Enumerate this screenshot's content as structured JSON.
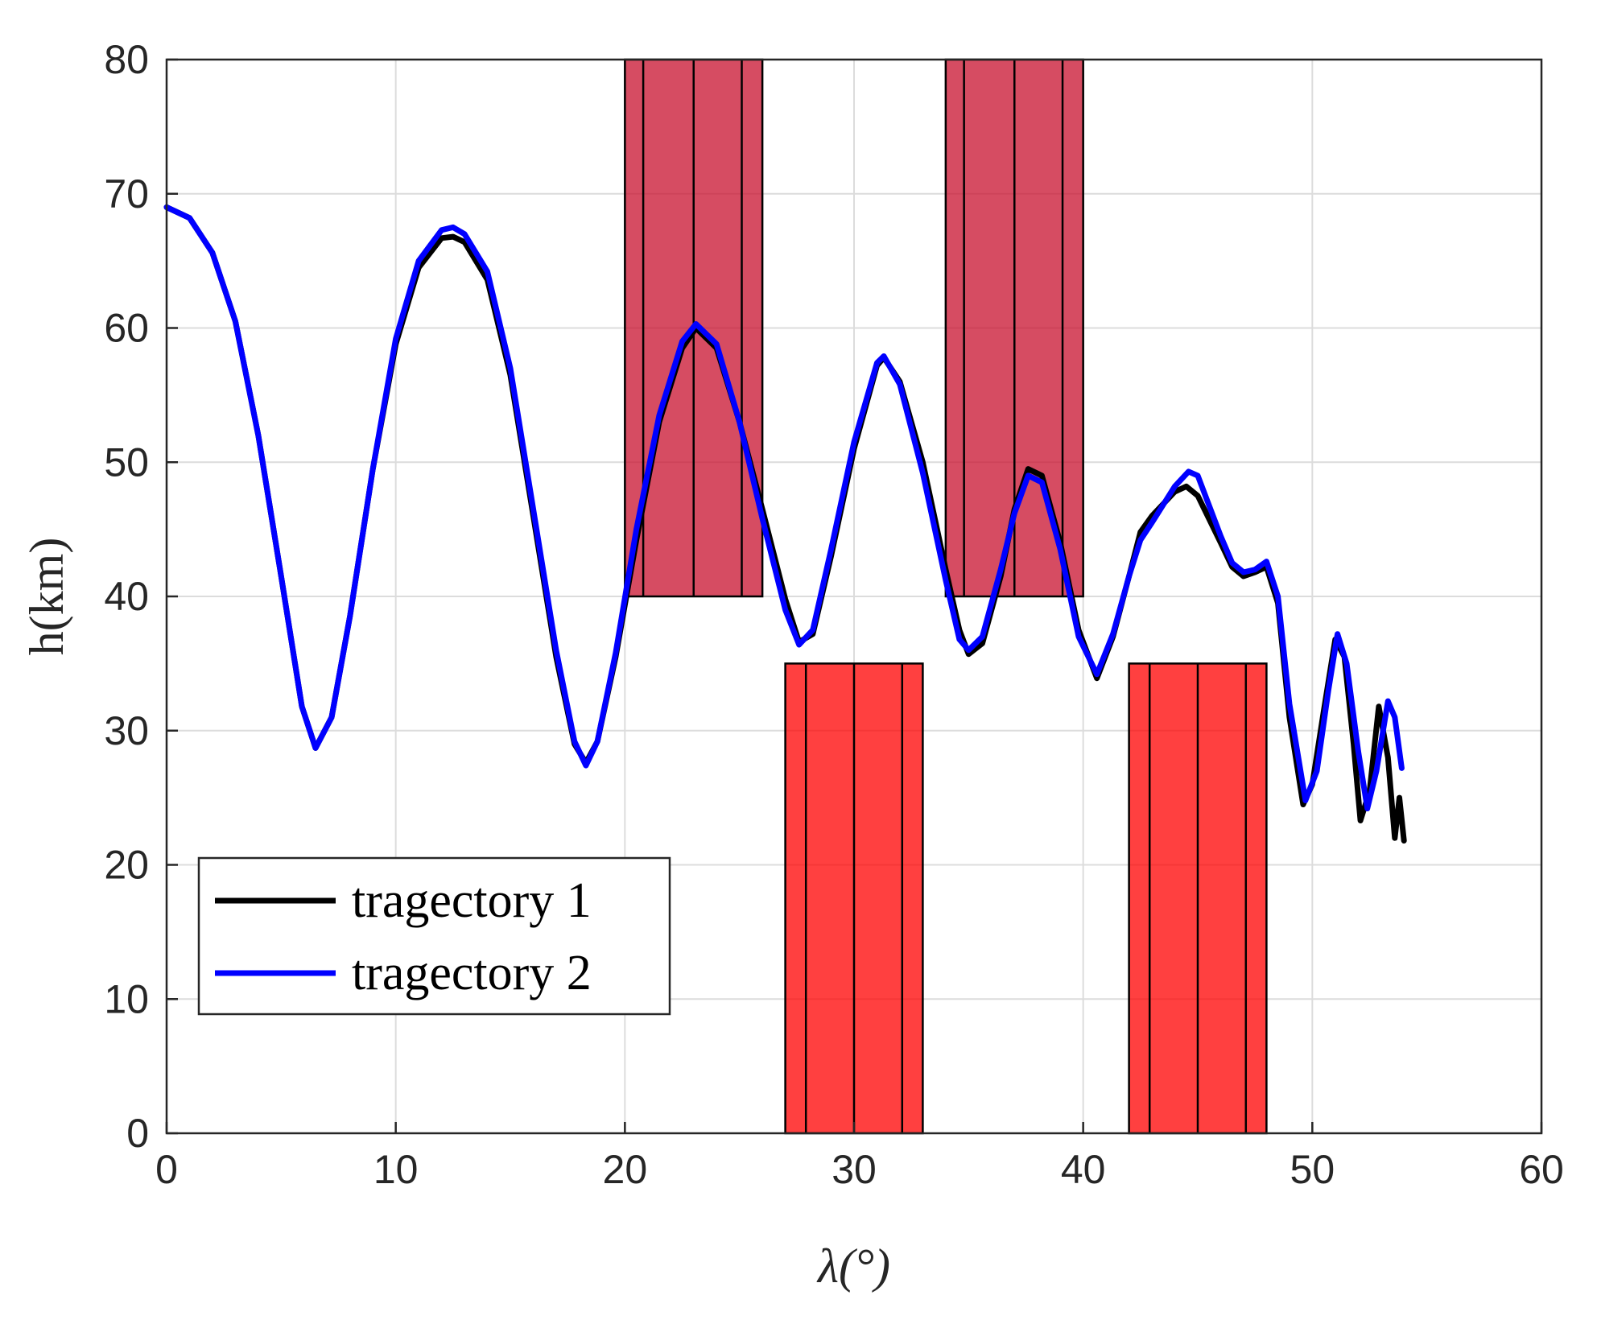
{
  "chart_data": {
    "type": "line",
    "xlabel": "λ(°)",
    "ylabel": "h(km)",
    "xlim": [
      0,
      60
    ],
    "ylim": [
      0,
      80
    ],
    "xticks": [
      0,
      10,
      20,
      30,
      40,
      50,
      60
    ],
    "yticks": [
      0,
      10,
      20,
      30,
      40,
      50,
      60,
      70,
      80
    ],
    "grid": true,
    "legend_position": "bottom-left",
    "series": [
      {
        "name": "tragectory 1",
        "color": "#000000",
        "points": [
          [
            0,
            69
          ],
          [
            1,
            68.2
          ],
          [
            2,
            65.6
          ],
          [
            3,
            60.5
          ],
          [
            4,
            52
          ],
          [
            5,
            41.5
          ],
          [
            5.9,
            31.8
          ],
          [
            6.5,
            28.7
          ],
          [
            7.2,
            31
          ],
          [
            8,
            38.5
          ],
          [
            9,
            49.5
          ],
          [
            10,
            58.8
          ],
          [
            11,
            64.5
          ],
          [
            12,
            66.7
          ],
          [
            12.5,
            66.8
          ],
          [
            13,
            66.4
          ],
          [
            14,
            63.6
          ],
          [
            15,
            56.5
          ],
          [
            16,
            46
          ],
          [
            17,
            35.5
          ],
          [
            17.8,
            29
          ],
          [
            18.3,
            27.6
          ],
          [
            18.8,
            29.2
          ],
          [
            19.6,
            35.5
          ],
          [
            20.5,
            44.2
          ],
          [
            21.5,
            53
          ],
          [
            22.5,
            58.5
          ],
          [
            23.1,
            60
          ],
          [
            24,
            58.5
          ],
          [
            25,
            53
          ],
          [
            26,
            46.5
          ],
          [
            27,
            39.8
          ],
          [
            27.6,
            36.6
          ],
          [
            28.2,
            37.2
          ],
          [
            29,
            43
          ],
          [
            30,
            51
          ],
          [
            31,
            57.2
          ],
          [
            31.3,
            57.8
          ],
          [
            32,
            56
          ],
          [
            33,
            50
          ],
          [
            34,
            42
          ],
          [
            34.6,
            37.5
          ],
          [
            35,
            35.7
          ],
          [
            35.6,
            36.5
          ],
          [
            36.4,
            41.5
          ],
          [
            37,
            46.5
          ],
          [
            37.6,
            49.5
          ],
          [
            38.2,
            49
          ],
          [
            39,
            44
          ],
          [
            39.8,
            37.5
          ],
          [
            40.6,
            33.9
          ],
          [
            41.3,
            37
          ],
          [
            42,
            41.5
          ],
          [
            42.5,
            44.8
          ],
          [
            43,
            46
          ],
          [
            44,
            47.8
          ],
          [
            44.5,
            48.2
          ],
          [
            45,
            47.5
          ],
          [
            46,
            44
          ],
          [
            46.5,
            42.2
          ],
          [
            47,
            41.5
          ],
          [
            47.5,
            41.8
          ],
          [
            48,
            42.2
          ],
          [
            48.5,
            39.5
          ],
          [
            49,
            31
          ],
          [
            49.6,
            24.5
          ],
          [
            50,
            26
          ],
          [
            50.5,
            31.5
          ],
          [
            51,
            36.8
          ],
          [
            51.4,
            35.5
          ],
          [
            51.8,
            29
          ],
          [
            52.1,
            23.3
          ],
          [
            52.5,
            25.5
          ],
          [
            52.9,
            31.8
          ],
          [
            53.3,
            28
          ],
          [
            53.6,
            22
          ],
          [
            53.8,
            25
          ],
          [
            54,
            21.8
          ]
        ]
      },
      {
        "name": "tragectory 2",
        "color": "#0000ff",
        "points": [
          [
            0,
            69
          ],
          [
            1,
            68.2
          ],
          [
            2,
            65.6
          ],
          [
            3,
            60.5
          ],
          [
            4,
            52
          ],
          [
            5,
            41.5
          ],
          [
            5.9,
            31.8
          ],
          [
            6.5,
            28.7
          ],
          [
            7.2,
            31
          ],
          [
            8,
            38.5
          ],
          [
            9,
            49.5
          ],
          [
            10,
            59.2
          ],
          [
            11,
            65
          ],
          [
            12,
            67.3
          ],
          [
            12.5,
            67.5
          ],
          [
            13,
            67
          ],
          [
            14,
            64.2
          ],
          [
            15,
            57
          ],
          [
            16,
            46.5
          ],
          [
            17,
            36
          ],
          [
            17.8,
            29.2
          ],
          [
            18.3,
            27.4
          ],
          [
            18.8,
            29.2
          ],
          [
            19.6,
            35.8
          ],
          [
            20.5,
            45
          ],
          [
            21.5,
            53.5
          ],
          [
            22.5,
            59
          ],
          [
            23.1,
            60.3
          ],
          [
            24,
            58.8
          ],
          [
            25,
            53
          ],
          [
            26,
            45.8
          ],
          [
            27,
            39
          ],
          [
            27.6,
            36.4
          ],
          [
            28.2,
            37.5
          ],
          [
            29,
            43.5
          ],
          [
            30,
            51.5
          ],
          [
            31,
            57.4
          ],
          [
            31.3,
            57.9
          ],
          [
            32,
            55.8
          ],
          [
            33,
            49.2
          ],
          [
            34,
            41.2
          ],
          [
            34.6,
            36.8
          ],
          [
            35,
            36
          ],
          [
            35.6,
            37
          ],
          [
            36.4,
            42
          ],
          [
            37,
            46.2
          ],
          [
            37.6,
            49
          ],
          [
            38.2,
            48.5
          ],
          [
            39,
            43.5
          ],
          [
            39.8,
            37
          ],
          [
            40.6,
            34.2
          ],
          [
            41.3,
            37.2
          ],
          [
            42,
            41.5
          ],
          [
            42.5,
            44.2
          ],
          [
            43,
            45.5
          ],
          [
            44,
            48.2
          ],
          [
            44.6,
            49.3
          ],
          [
            45,
            49
          ],
          [
            46,
            44.5
          ],
          [
            46.5,
            42.5
          ],
          [
            47,
            41.8
          ],
          [
            47.5,
            42
          ],
          [
            48,
            42.6
          ],
          [
            48.5,
            40
          ],
          [
            49,
            32
          ],
          [
            49.7,
            24.8
          ],
          [
            50.2,
            27
          ],
          [
            50.7,
            33
          ],
          [
            51.1,
            37.2
          ],
          [
            51.5,
            35
          ],
          [
            52,
            28.5
          ],
          [
            52.4,
            24.2
          ],
          [
            52.8,
            27
          ],
          [
            53.3,
            32.2
          ],
          [
            53.6,
            31
          ],
          [
            53.9,
            27.2
          ]
        ]
      }
    ],
    "regions": [
      {
        "x0": 20,
        "x1": 26,
        "y0": 40,
        "y1": 80,
        "color": "#c8102e",
        "inner_lines": [
          20.8,
          23,
          25.1
        ]
      },
      {
        "x0": 34,
        "x1": 40,
        "y0": 40,
        "y1": 80,
        "color": "#c8102e",
        "inner_lines": [
          34.8,
          37,
          39.1
        ]
      },
      {
        "x0": 27,
        "x1": 33,
        "y0": 0,
        "y1": 35,
        "color": "#ff0000",
        "inner_lines": [
          27.9,
          30,
          32.1
        ]
      },
      {
        "x0": 42,
        "x1": 48,
        "y0": 0,
        "y1": 35,
        "color": "#ff0000",
        "inner_lines": [
          42.9,
          45,
          47.1
        ]
      }
    ]
  }
}
